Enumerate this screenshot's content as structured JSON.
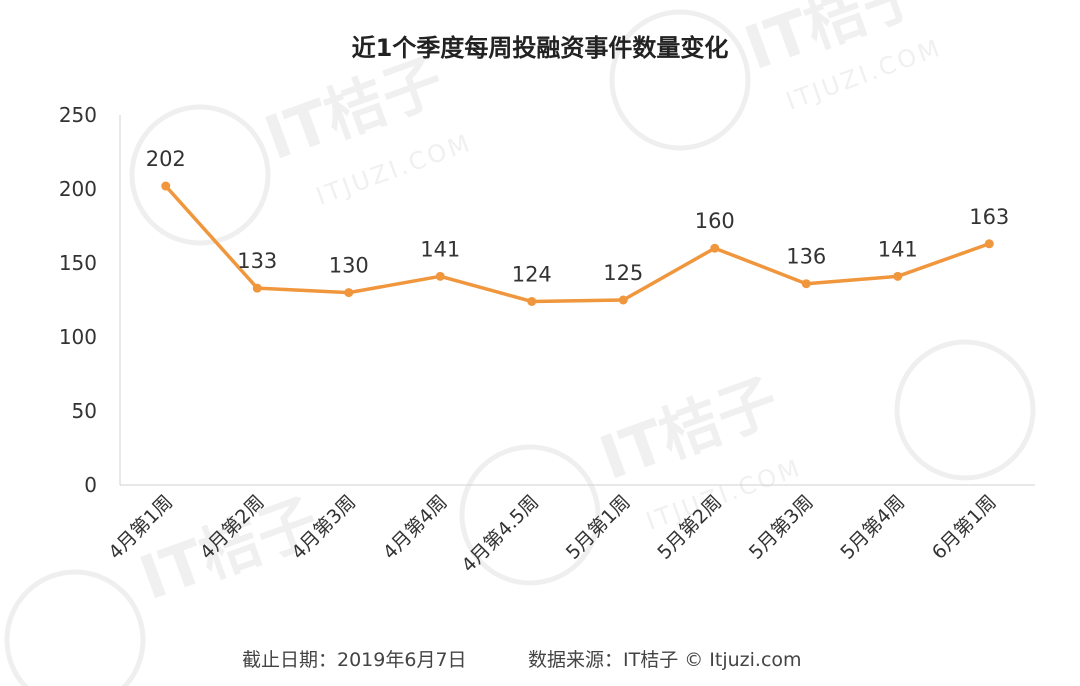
{
  "chart_data": {
    "type": "line",
    "title": "近1个季度每周投融资事件数量变化",
    "categories": [
      "4月第1周",
      "4月第2周",
      "4月第3周",
      "4月第4周",
      "4月第4.5周",
      "5月第1周",
      "5月第2周",
      "5月第3周",
      "5月第4周",
      "6月第1周"
    ],
    "series": [
      {
        "values": [
          202,
          133,
          130,
          141,
          124,
          125,
          160,
          136,
          141,
          163
        ],
        "color": "#f0963d"
      }
    ],
    "ylim": [
      0,
      250
    ],
    "yticks": [
      0,
      50,
      100,
      150,
      200,
      250
    ],
    "grid": false,
    "legend": "none"
  },
  "footer": {
    "date_text": "截止日期：2019年6月7日",
    "source_text": "数据来源：IT桔子 © Itjuzi.com"
  },
  "watermark": {
    "brand": "IT桔子",
    "domain": "ITJUZI.COM"
  }
}
